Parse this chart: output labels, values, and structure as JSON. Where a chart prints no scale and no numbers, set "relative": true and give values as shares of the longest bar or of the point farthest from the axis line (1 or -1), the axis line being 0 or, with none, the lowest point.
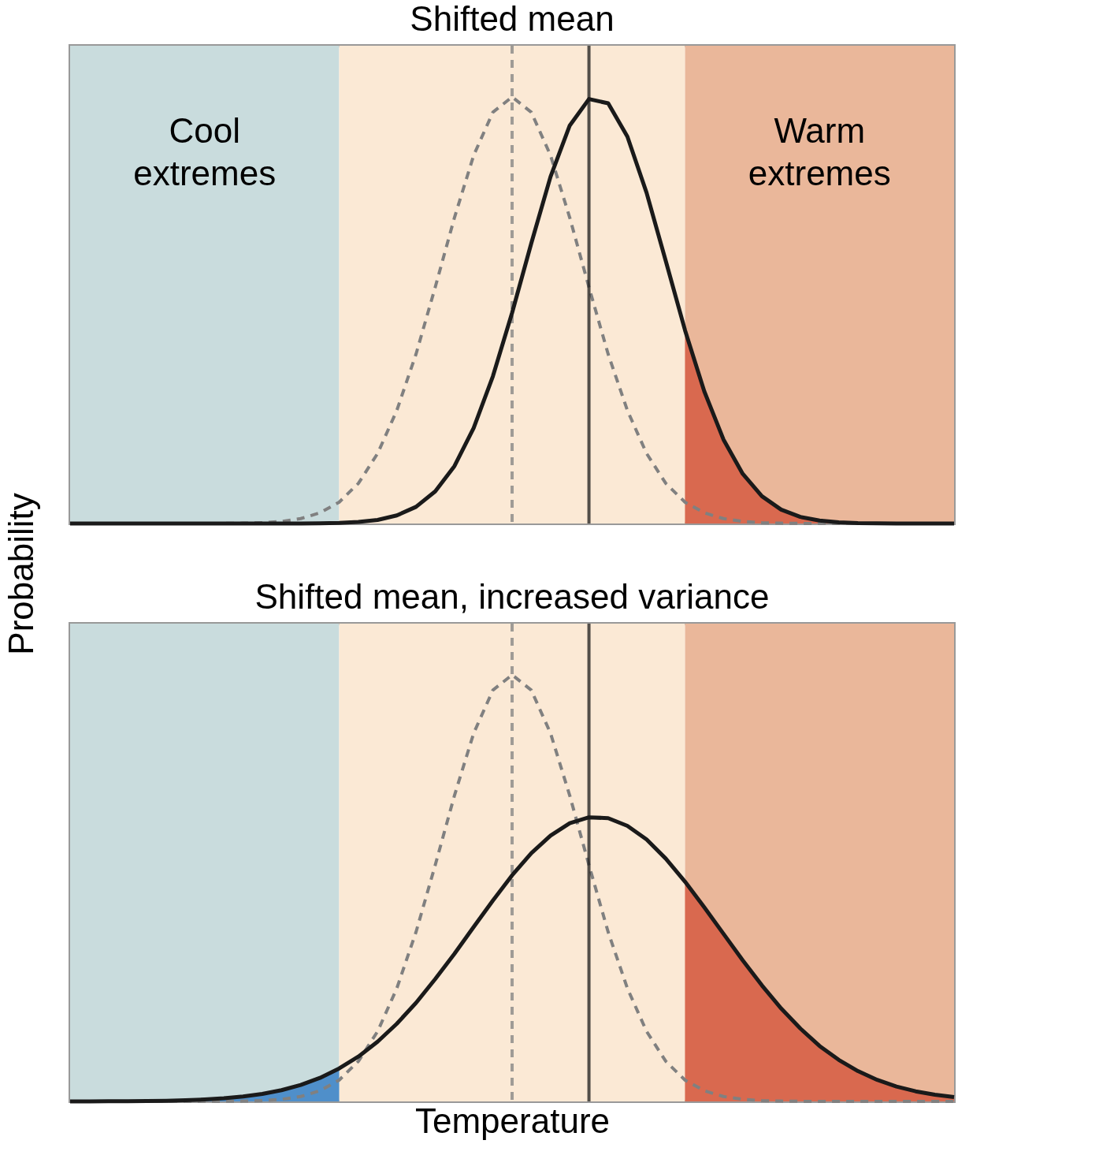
{
  "chart_data": [
    {
      "type": "line",
      "title": "Shifted mean",
      "ylabel": "Probability",
      "relative": true,
      "tick_labels": false,
      "annotations": [
        "Cool\nextremes",
        "Warm\nextremes"
      ],
      "categories": [
        null,
        null,
        null,
        null,
        null,
        null,
        null,
        null,
        null,
        null,
        null,
        null,
        null,
        null,
        null,
        null,
        null,
        null,
        null,
        null,
        null,
        null,
        null,
        null,
        null,
        null,
        null,
        null,
        null,
        null,
        null,
        null,
        null,
        null,
        null,
        null,
        null,
        null,
        null,
        null,
        null,
        null,
        null,
        null,
        null,
        null,
        null
      ],
      "series": [
        {
          "type": "area",
          "color": "#d9694f",
          "values": [
            null,
            null,
            null,
            null,
            null,
            null,
            null,
            null,
            null,
            null,
            null,
            null,
            null,
            null,
            null,
            null,
            null,
            null,
            null,
            null,
            null,
            null,
            null,
            null,
            null,
            null,
            null,
            null,
            null,
            null,
            null,
            null,
            0.453,
            0.31,
            0.197,
            0.1165,
            0.0639,
            0.0326,
            0.0154,
            0.0068,
            0.0028,
            0.001,
            0.0004,
            0.0001,
            0,
            0,
            0
          ]
        },
        {
          "color": "#808080",
          "line_style": "dashed",
          "values": [
            0,
            0,
            0,
            0,
            0,
            0,
            0,
            0.0001,
            0.0002,
            0.0007,
            0.0019,
            0.0049,
            0.0115,
            0.025,
            0.05,
            0.094,
            0.164,
            0.265,
            0.397,
            0.554,
            0.717,
            0.863,
            0.964,
            1,
            0.964,
            0.863,
            0.717,
            0.554,
            0.397,
            0.265,
            0.164,
            0.094,
            0.05,
            0.025,
            0.0115,
            0.0049,
            0.0019,
            0.0007,
            0.0002,
            0.0001,
            0,
            0,
            0,
            0,
            0,
            0,
            0
          ]
        },
        {
          "color": "#1a1a1a",
          "line_style": "solid",
          "values": [
            0,
            0,
            0,
            0,
            0,
            0,
            0,
            0,
            0,
            0,
            0,
            0,
            0.0002,
            0.0005,
            0.0014,
            0.0035,
            0.0084,
            0.0189,
            0.0391,
            0.0752,
            0.1345,
            0.224,
            0.345,
            0.494,
            0.657,
            0.813,
            0.933,
            0.995,
            0.985,
            0.907,
            0.775,
            0.615,
            0.453,
            0.31,
            0.197,
            0.1165,
            0.0639,
            0.0326,
            0.0154,
            0.0068,
            0.0028,
            0.001,
            0.0004,
            0.0001,
            0,
            0,
            0
          ]
        }
      ]
    },
    {
      "type": "line",
      "title": "Shifted mean, increased variance",
      "xlabel": "Temperature",
      "relative": true,
      "tick_labels": false,
      "categories": [
        null,
        null,
        null,
        null,
        null,
        null,
        null,
        null,
        null,
        null,
        null,
        null,
        null,
        null,
        null,
        null,
        null,
        null,
        null,
        null,
        null,
        null,
        null,
        null,
        null,
        null,
        null,
        null,
        null,
        null,
        null,
        null,
        null,
        null,
        null,
        null,
        null,
        null,
        null,
        null,
        null,
        null,
        null,
        null,
        null,
        null,
        null
      ],
      "series": [
        {
          "type": "area",
          "color": "#d9694f",
          "values": [
            null,
            null,
            null,
            null,
            null,
            null,
            null,
            null,
            null,
            null,
            null,
            null,
            null,
            null,
            null,
            null,
            null,
            null,
            null,
            null,
            null,
            null,
            null,
            null,
            null,
            null,
            null,
            null,
            null,
            null,
            null,
            null,
            0.515,
            0.455,
            0.393,
            0.331,
            0.272,
            0.218,
            0.171,
            0.13,
            0.0974,
            0.071,
            0.0504,
            0.035,
            0.0237,
            0.0157,
            0.0101
          ]
        },
        {
          "type": "area",
          "color": "#4f8fca",
          "values": [
            0.0001,
            0.0002,
            0.0003,
            0.0005,
            0.0009,
            0.0016,
            0.0027,
            0.0045,
            0.0072,
            0.0114,
            0.0175,
            0.0263,
            0.0386,
            0.0552,
            0.0772,
            null,
            null,
            null,
            null,
            null,
            null,
            null,
            null,
            null,
            null,
            null,
            null,
            null,
            null,
            null,
            null,
            null,
            null,
            null,
            null,
            null,
            null,
            null,
            null,
            null,
            null,
            null,
            null,
            null,
            null,
            null,
            null
          ]
        },
        {
          "color": "#808080",
          "line_style": "dashed",
          "values": [
            0,
            0,
            0,
            0,
            0,
            0,
            0,
            0.0001,
            0.0002,
            0.0007,
            0.0019,
            0.0049,
            0.0115,
            0.025,
            0.05,
            0.094,
            0.164,
            0.265,
            0.397,
            0.554,
            0.717,
            0.863,
            0.964,
            1,
            0.964,
            0.863,
            0.717,
            0.554,
            0.397,
            0.265,
            0.164,
            0.094,
            0.05,
            0.025,
            0.0115,
            0.0049,
            0.0019,
            0.0007,
            0.0002,
            0.0001,
            0,
            0,
            0,
            0,
            0,
            0,
            0
          ]
        },
        {
          "color": "#1a1a1a",
          "line_style": "solid",
          "values": [
            0.0001,
            0.0002,
            0.0003,
            0.0005,
            0.0009,
            0.0016,
            0.0027,
            0.0045,
            0.0072,
            0.0114,
            0.0175,
            0.0263,
            0.0386,
            0.0552,
            0.0772,
            0.105,
            0.14,
            0.182,
            0.231,
            0.287,
            0.346,
            0.409,
            0.471,
            0.53,
            0.582,
            0.623,
            0.652,
            0.666,
            0.664,
            0.646,
            0.614,
            0.569,
            0.515,
            0.455,
            0.393,
            0.331,
            0.272,
            0.218,
            0.171,
            0.13,
            0.0974,
            0.071,
            0.0504,
            0.035,
            0.0237,
            0.0157,
            0.0101
          ]
        }
      ]
    }
  ]
}
